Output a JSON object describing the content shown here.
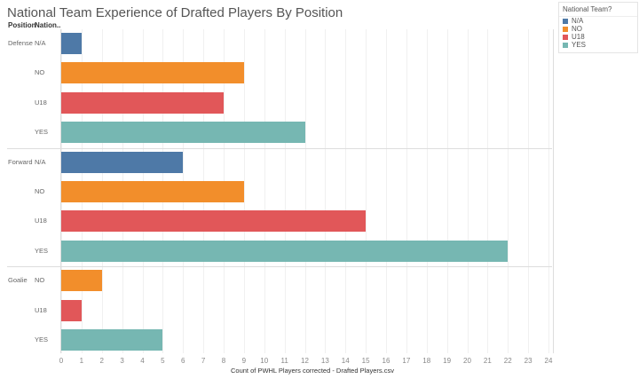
{
  "title": "National Team Experience of Drafted Players By Position",
  "headers": {
    "position": "Position",
    "national": "Nation.."
  },
  "legend": {
    "title": "National Team?",
    "items": [
      {
        "label": "N/A",
        "color": "#4e79a7"
      },
      {
        "label": "NO",
        "color": "#f28e2b"
      },
      {
        "label": "U18",
        "color": "#e15759"
      },
      {
        "label": "YES",
        "color": "#76b7b2"
      }
    ]
  },
  "chart_data": {
    "type": "bar",
    "orientation": "horizontal",
    "title": "National Team Experience of Drafted Players By Position",
    "xlabel": "Count of PWHL Players corrected - Drafted Players.csv",
    "xlim": [
      0,
      24
    ],
    "xticks": [
      "0",
      "1",
      "2",
      "3",
      "4",
      "5",
      "6",
      "7",
      "8",
      "9",
      "10",
      "11",
      "12",
      "13",
      "14",
      "15",
      "16",
      "17",
      "18",
      "19",
      "20",
      "21",
      "22",
      "23",
      "24"
    ],
    "groups": [
      {
        "name": "Defense",
        "bars": [
          {
            "cat": "N/A",
            "value": 1
          },
          {
            "cat": "NO",
            "value": 9
          },
          {
            "cat": "U18",
            "value": 8
          },
          {
            "cat": "YES",
            "value": 12
          }
        ]
      },
      {
        "name": "Forward",
        "bars": [
          {
            "cat": "N/A",
            "value": 6
          },
          {
            "cat": "NO",
            "value": 9
          },
          {
            "cat": "U18",
            "value": 15
          },
          {
            "cat": "YES",
            "value": 22
          }
        ]
      },
      {
        "name": "Goalie",
        "bars": [
          {
            "cat": "NO",
            "value": 2
          },
          {
            "cat": "U18",
            "value": 1
          },
          {
            "cat": "YES",
            "value": 5
          }
        ]
      }
    ],
    "grid": true,
    "legend_position": "right"
  }
}
